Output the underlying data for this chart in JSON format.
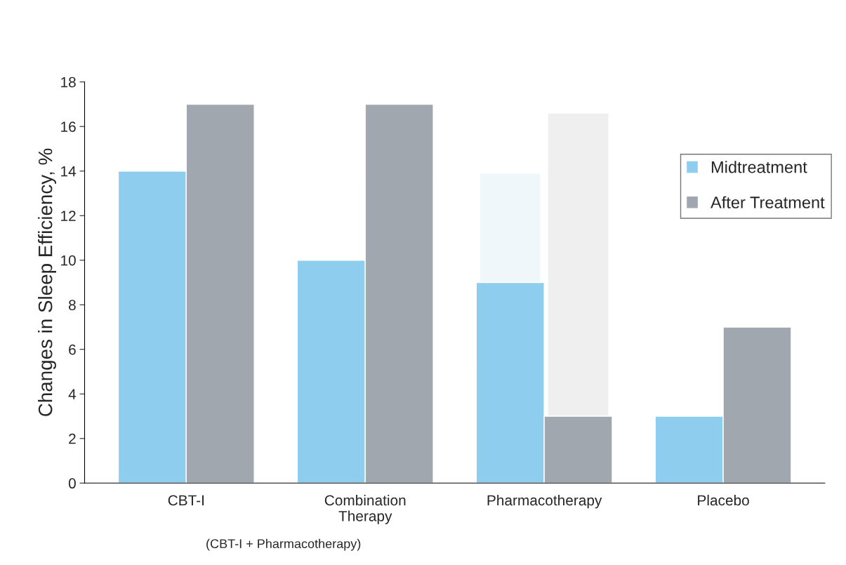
{
  "chart_data": {
    "type": "bar",
    "ylabel": "Changes in Sleep Efficiency, %",
    "categories": [
      "CBT-I",
      "Combination\nTherapy",
      "Pharmacotherapy",
      "Placebo"
    ],
    "series": [
      {
        "name": "Midtreatment",
        "color": "#8ecdee",
        "values": [
          14,
          10,
          9,
          3
        ]
      },
      {
        "name": "After Treatment",
        "color": "#a1a7ae",
        "values": [
          17,
          17,
          3,
          7
        ]
      },
      {
        "color": "#f0f7fb",
        "values": [
          null,
          null,
          4.9,
          null
        ],
        "base": [
          null,
          null,
          9,
          null
        ]
      },
      {
        "color": "#efefef",
        "values": [
          null,
          null,
          13.6,
          null
        ],
        "base": [
          null,
          null,
          3,
          null
        ]
      }
    ],
    "ylim": [
      0,
      18
    ],
    "yticks": [
      0,
      2,
      4,
      6,
      8,
      10,
      12,
      14,
      16,
      18
    ],
    "grid": false,
    "legend": "right",
    "annotations": [
      "(CBT-I + Pharmacotherapy)"
    ]
  }
}
